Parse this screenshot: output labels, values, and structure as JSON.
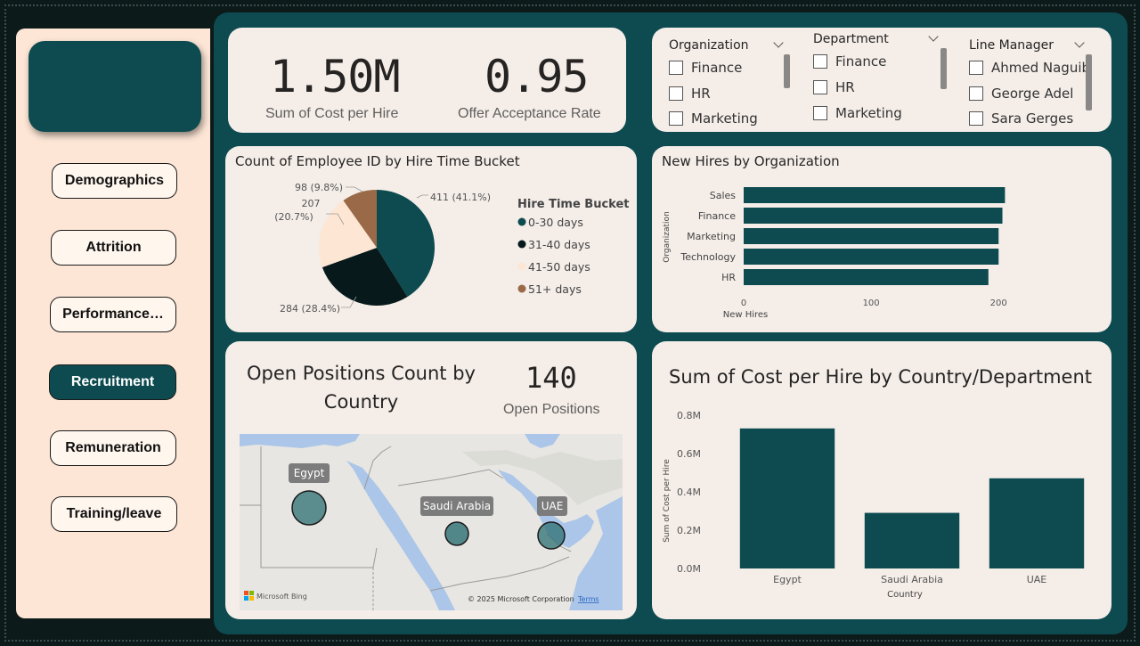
{
  "sidebar": {
    "items": [
      {
        "label": "Demographics",
        "active": false
      },
      {
        "label": "Attrition",
        "active": false
      },
      {
        "label": "Performance…",
        "active": false
      },
      {
        "label": "Recruitment",
        "active": true
      },
      {
        "label": "Remuneration",
        "active": false
      },
      {
        "label": "Training/leave",
        "active": false
      }
    ]
  },
  "kpis": {
    "cost": {
      "value": "1.50M",
      "label": "Sum of Cost per Hire"
    },
    "offer": {
      "value": "0.95",
      "label": "Offer Acceptance Rate"
    }
  },
  "slicers": {
    "organization": {
      "title": "Organization",
      "items": [
        "Finance",
        "HR",
        "Marketing"
      ]
    },
    "department": {
      "title": "Department",
      "items": [
        "Finance",
        "HR",
        "Marketing"
      ]
    },
    "line_manager": {
      "title": "Line Manager",
      "items": [
        "Ahmed Naguib",
        "George Adel",
        "Sara Gerges"
      ]
    }
  },
  "pie_chart": {
    "title": "Count of Employee ID by Hire Time Bucket",
    "legend_title": "Hire Time Bucket",
    "chart_data": {
      "type": "pie",
      "title": "Count of Employee ID by Hire Time Bucket",
      "slices": [
        {
          "label": "0-30 days",
          "value": 411,
          "pct": "41.1%",
          "data_label": "411 (41.1%)",
          "color": "#0d4b50"
        },
        {
          "label": "31-40 days",
          "value": 284,
          "pct": "28.4%",
          "data_label": "284 (28.4%)",
          "color": "#07191b"
        },
        {
          "label": "41-50 days",
          "value": 207,
          "pct": "20.7%",
          "data_label_line1": "207",
          "data_label_line2": "(20.7%)",
          "color": "#fde6d3"
        },
        {
          "label": "51+ days",
          "value": 98,
          "pct": "9.8%",
          "data_label": "98 (9.8%)",
          "color": "#9a6a48"
        }
      ]
    }
  },
  "org_chart": {
    "title": "New Hires by Organization",
    "chart_data": {
      "type": "bar",
      "orientation": "horizontal",
      "categories": [
        "Sales",
        "Finance",
        "Marketing",
        "Technology",
        "HR"
      ],
      "values": [
        205,
        203,
        200,
        200,
        192
      ],
      "xlabel": "New Hires",
      "ylabel": "Organization",
      "xlim": [
        0,
        225
      ],
      "xticks": [
        0,
        100,
        200
      ],
      "color": "#0d4b50"
    }
  },
  "map_card": {
    "title_line1": "Open Positions Count by",
    "title_line2": "Country",
    "count_value": "140",
    "count_label": "Open Positions",
    "bubbles": [
      {
        "label": "Egypt"
      },
      {
        "label": "Saudi Arabia"
      },
      {
        "label": "UAE"
      }
    ],
    "bing_label": "Microsoft Bing",
    "copyright": "© 2025 Microsoft Corporation",
    "terms": "Terms"
  },
  "country_chart": {
    "title": "Sum of Cost per Hire by Country/Department",
    "chart_data": {
      "type": "bar",
      "categories": [
        "Egypt",
        "Saudi Arabia",
        "UAE"
      ],
      "values": [
        0.73,
        0.29,
        0.47
      ],
      "value_unit": "M",
      "xlabel": "Country",
      "ylabel": "Sum of Cost per Hire",
      "ylim": [
        0,
        0.85
      ],
      "yticks": [
        "0.0M",
        "0.2M",
        "0.4M",
        "0.6M",
        "0.8M"
      ],
      "ytick_values": [
        0,
        0.2,
        0.4,
        0.6,
        0.8
      ],
      "color": "#0d4b50"
    }
  },
  "colors": {
    "accent": "#0d4b50",
    "sidebar": "#fde6d6",
    "card": "#f4ede8"
  }
}
